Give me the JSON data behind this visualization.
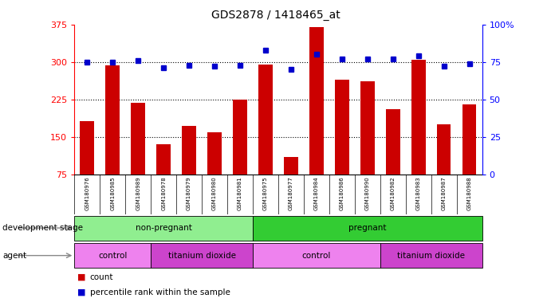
{
  "title": "GDS2878 / 1418465_at",
  "samples": [
    "GSM180976",
    "GSM180985",
    "GSM180989",
    "GSM180978",
    "GSM180979",
    "GSM180980",
    "GSM180981",
    "GSM180975",
    "GSM180977",
    "GSM180984",
    "GSM180986",
    "GSM180990",
    "GSM180982",
    "GSM180983",
    "GSM180987",
    "GSM180988"
  ],
  "counts": [
    182,
    293,
    218,
    135,
    172,
    160,
    225,
    295,
    110,
    370,
    265,
    262,
    205,
    305,
    175,
    215
  ],
  "percentiles": [
    75,
    75,
    76,
    71,
    73,
    72,
    73,
    83,
    70,
    80,
    77,
    77,
    77,
    79,
    72,
    74
  ],
  "bar_color": "#cc0000",
  "dot_color": "#0000cc",
  "y_min": 75,
  "y_max": 375,
  "y_ticks_left": [
    75,
    150,
    225,
    300,
    375
  ],
  "y_ticks_right": [
    0,
    25,
    50,
    75,
    100
  ],
  "hlines": [
    150,
    225,
    300
  ],
  "dev_groups": [
    {
      "label": "non-pregnant",
      "start": 0,
      "end": 7,
      "color": "#90ee90"
    },
    {
      "label": "pregnant",
      "start": 7,
      "end": 16,
      "color": "#33cc33"
    }
  ],
  "agent_groups": [
    {
      "label": "control",
      "start": 0,
      "end": 3,
      "color": "#ee82ee"
    },
    {
      "label": "titanium dioxide",
      "start": 3,
      "end": 7,
      "color": "#cc44cc"
    },
    {
      "label": "control",
      "start": 7,
      "end": 12,
      "color": "#ee82ee"
    },
    {
      "label": "titanium dioxide",
      "start": 12,
      "end": 16,
      "color": "#cc44cc"
    }
  ],
  "legend": [
    {
      "label": "count",
      "color": "#cc0000"
    },
    {
      "label": "percentile rank within the sample",
      "color": "#0000cc"
    }
  ]
}
